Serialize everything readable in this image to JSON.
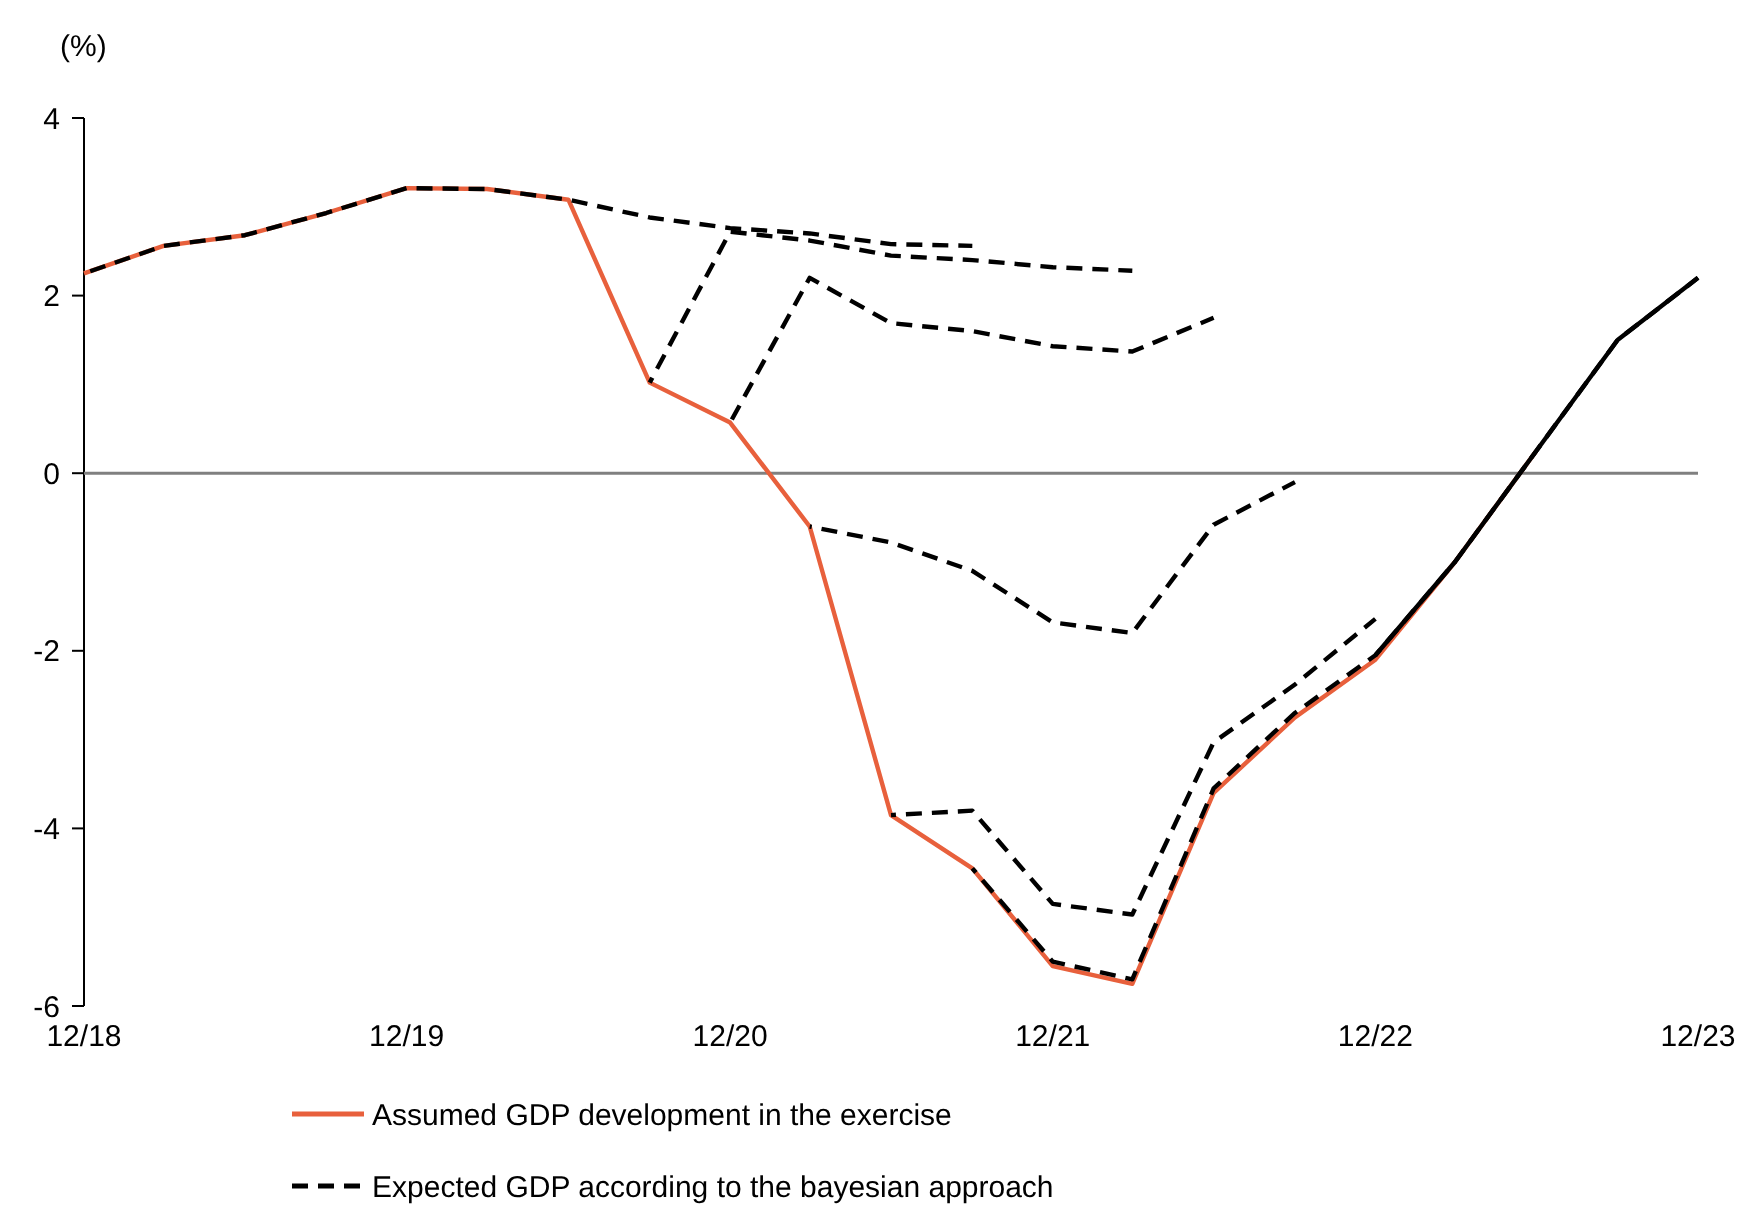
{
  "chart_data": {
    "type": "line",
    "ylabel": "(%)",
    "xlim": [
      "2018-12",
      "2023-12"
    ],
    "ylim": [
      -6,
      4
    ],
    "yticks": [
      -6,
      -4,
      -2,
      0,
      2,
      4
    ],
    "xticks": [
      {
        "value": "2018-12",
        "label": "12/18"
      },
      {
        "value": "2019-12",
        "label": "12/19"
      },
      {
        "value": "2020-12",
        "label": "12/20"
      },
      {
        "value": "2021-12",
        "label": "12/21"
      },
      {
        "value": "2022-12",
        "label": "12/22"
      },
      {
        "value": "2023-12",
        "label": "12/23"
      }
    ],
    "grid": false,
    "legend": "bottom",
    "marker": "none",
    "ref_lines": [
      {
        "axis": "y",
        "value": 0,
        "color": "#808080"
      }
    ],
    "series": [
      {
        "name": "Assumed GDP development in the exercise",
        "color": "#e8603c",
        "line_style": "solid",
        "x": [
          "2018-12",
          "2019-03",
          "2019-06",
          "2019-09",
          "2019-12",
          "2020-03",
          "2020-06",
          "2020-09",
          "2020-12",
          "2021-03",
          "2021-06",
          "2021-09",
          "2021-12",
          "2022-03",
          "2022-06",
          "2022-09",
          "2022-12",
          "2023-03",
          "2023-06"
        ],
        "values": [
          2.25,
          2.56,
          2.68,
          2.93,
          3.21,
          3.2,
          3.08,
          1.02,
          0.57,
          -0.6,
          -3.85,
          -4.45,
          -5.55,
          -5.75,
          -3.6,
          -2.75,
          -2.1,
          -1.0,
          0.25
        ]
      },
      {
        "name": "Expected GDP according to the bayesian approach",
        "color": "#000000",
        "line_style": "dashed",
        "x": [
          "2018-12",
          "2019-03",
          "2019-06",
          "2019-09",
          "2019-12",
          "2020-03",
          "2020-06",
          "2020-09",
          "2020-12",
          "2021-03",
          "2021-06",
          "2021-09"
        ],
        "values": [
          2.25,
          2.56,
          2.68,
          2.93,
          3.21,
          3.2,
          3.08,
          2.88,
          2.76,
          2.7,
          2.58,
          2.56
        ]
      },
      {
        "color": "#000000",
        "line_style": "dashed",
        "x": [
          "2020-09",
          "2020-12",
          "2021-03",
          "2021-06",
          "2021-09",
          "2021-12",
          "2022-03"
        ],
        "values": [
          1.02,
          2.72,
          2.62,
          2.45,
          2.4,
          2.32,
          2.28
        ]
      },
      {
        "color": "#000000",
        "line_style": "dashed",
        "x": [
          "2020-12",
          "2021-03",
          "2021-06",
          "2021-09",
          "2021-12",
          "2022-03",
          "2022-06"
        ],
        "values": [
          0.57,
          2.2,
          1.69,
          1.6,
          1.43,
          1.37,
          1.75
        ]
      },
      {
        "color": "#000000",
        "line_style": "dashed",
        "x": [
          "2021-03",
          "2021-06",
          "2021-09",
          "2021-12",
          "2022-03",
          "2022-06",
          "2022-09"
        ],
        "values": [
          -0.6,
          -0.78,
          -1.1,
          -1.68,
          -1.8,
          -0.58,
          -0.1
        ]
      },
      {
        "color": "#000000",
        "line_style": "dashed",
        "x": [
          "2021-06",
          "2021-09",
          "2021-12",
          "2022-03",
          "2022-06",
          "2022-09",
          "2022-12"
        ],
        "values": [
          -3.85,
          -3.8,
          -4.85,
          -4.97,
          -3.03,
          -2.38,
          -1.64
        ]
      },
      {
        "color": "#000000",
        "line_style": "dashed",
        "x": [
          "2021-09",
          "2021-12",
          "2022-03",
          "2022-06",
          "2022-09",
          "2022-12",
          "2023-03",
          "2023-06",
          "2023-09",
          "2023-12"
        ],
        "values": [
          -4.45,
          -5.5,
          -5.7,
          -3.55,
          -2.7,
          -2.05,
          -1.0,
          0.25,
          1.5,
          2.2
        ]
      },
      {
        "color": "#000000",
        "line_style": "solid",
        "x": [
          "2022-12",
          "2023-03",
          "2023-06",
          "2023-09",
          "2023-12"
        ],
        "values": [
          -2.05,
          -1.0,
          0.25,
          1.5,
          2.2
        ]
      }
    ]
  }
}
